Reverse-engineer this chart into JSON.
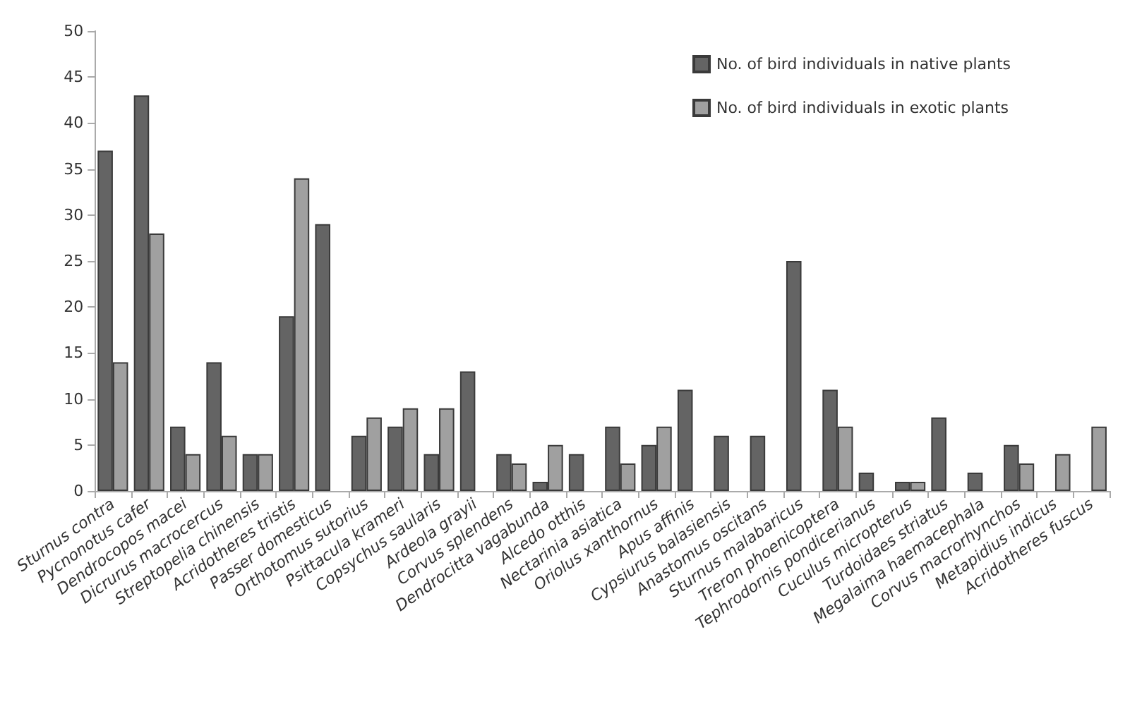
{
  "chart_data": {
    "type": "bar",
    "categories": [
      "Sturnus contra",
      "Pycnonotus cafer",
      "Dendrocopos macei",
      "Dicrurus macrocercus",
      "Streptopelia chinensis",
      "Acridotheres tristis",
      "Passer domesticus",
      "Orthotomus sutorius",
      "Psittacula krameri",
      "Copsychus saularis",
      "Ardeola grayii",
      "Corvus splendens",
      "Dendrocitta vagabunda",
      "Alcedo otthis",
      "Nectarinia asiatica",
      "Oriolus xanthornus",
      "Apus affinis",
      "Cypsiurus balasiensis",
      "Anastomus oscitans",
      "Sturnus malabaricus",
      "Treron phoenicoptera",
      "Tephrodornis pondicerianus",
      "Cuculus micropterus",
      "Turdoidaes striatus",
      "Megalaima haemacephala",
      "Corvus macrorhynchos",
      "Metapidius indicus",
      "Acridotheres fuscus"
    ],
    "series": [
      {
        "name": "No. of bird individuals in native plants",
        "color": "#646464",
        "values": [
          37,
          43,
          7,
          14,
          4,
          19,
          29,
          6,
          7,
          4,
          13,
          4,
          1,
          4,
          7,
          5,
          11,
          6,
          6,
          25,
          11,
          2,
          1,
          8,
          2,
          5,
          null,
          null
        ]
      },
      {
        "name": "No. of bird individuals in exotic plants",
        "color": "#a0a0a0",
        "values": [
          14,
          28,
          4,
          6,
          4,
          34,
          null,
          8,
          9,
          9,
          null,
          3,
          5,
          null,
          3,
          7,
          null,
          null,
          null,
          null,
          7,
          null,
          1,
          null,
          null,
          3,
          4,
          7
        ]
      }
    ],
    "ylim": [
      0,
      50
    ],
    "yticks": [
      0,
      5,
      10,
      15,
      20,
      25,
      30,
      35,
      40,
      45,
      50
    ],
    "grid": false,
    "legend": "top right"
  }
}
